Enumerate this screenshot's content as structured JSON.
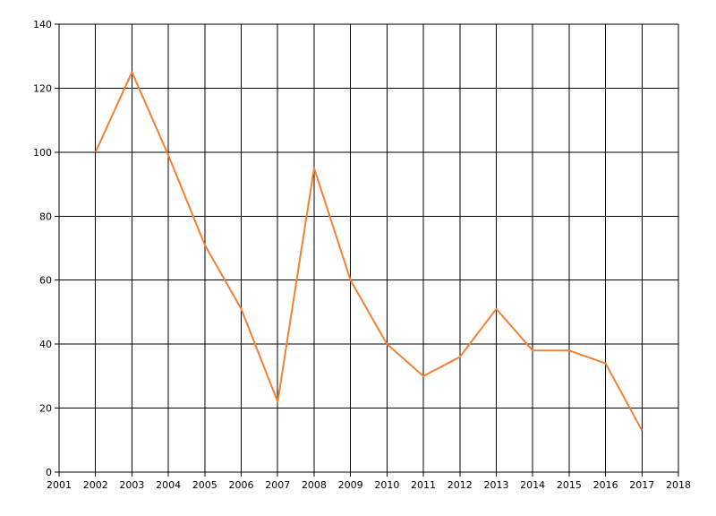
{
  "chart_data": {
    "type": "line",
    "x": [
      2002,
      2003,
      2004,
      2005,
      2006,
      2007,
      2008,
      2009,
      2010,
      2011,
      2012,
      2013,
      2014,
      2015,
      2016,
      2017
    ],
    "values": [
      100,
      125,
      99,
      71,
      51,
      22,
      95,
      60,
      40,
      30,
      36,
      51,
      38,
      38,
      34,
      13
    ],
    "color": "#f28035",
    "xlim": [
      2001,
      2018
    ],
    "xticks": [
      2001,
      2002,
      2003,
      2004,
      2005,
      2006,
      2007,
      2008,
      2009,
      2010,
      2011,
      2012,
      2013,
      2014,
      2015,
      2016,
      2017,
      2018
    ],
    "ylim": [
      0,
      140
    ],
    "yticks": [
      0,
      20,
      40,
      60,
      80,
      100,
      120,
      140
    ],
    "grid": true
  }
}
